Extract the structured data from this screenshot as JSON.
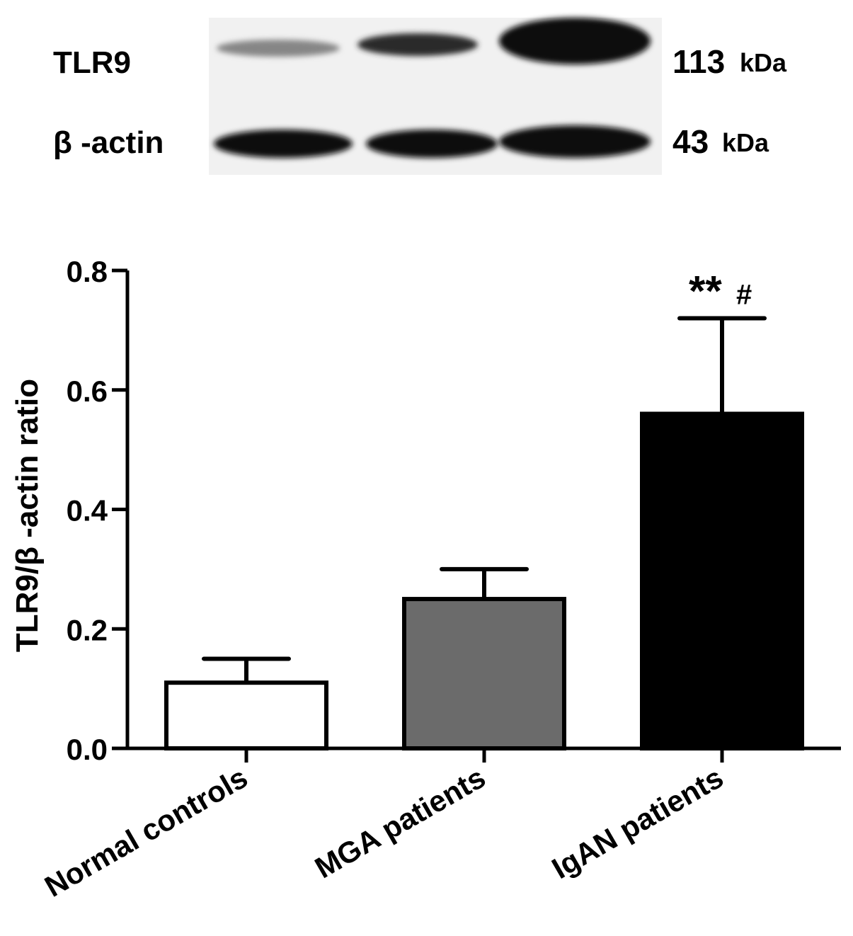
{
  "blot": {
    "rows": [
      {
        "label": "TLR9",
        "size_value": "113",
        "size_unit": "kDa",
        "band_intensity": [
          0.45,
          0.85,
          1.0
        ]
      },
      {
        "label": "β -actin",
        "size_value": "43",
        "size_unit": "kDa",
        "band_intensity": [
          1.0,
          1.0,
          1.0
        ]
      }
    ]
  },
  "chart_data": {
    "type": "bar",
    "title": "",
    "xlabel": "",
    "ylabel": "TLR9/β -actin ratio",
    "ylim": [
      0,
      0.8
    ],
    "yticks": [
      "0.0",
      "0.2",
      "0.4",
      "0.6",
      "0.8"
    ],
    "categories": [
      "Normal controls",
      "MGA patients",
      "IgAN patients"
    ],
    "values": [
      0.11,
      0.25,
      0.56
    ],
    "errors": [
      0.04,
      0.05,
      0.16
    ],
    "bar_colors": [
      "#ffffff",
      "#6b6b6b",
      "#000000"
    ],
    "annotations": [
      {
        "category": "IgAN patients",
        "text": "**",
        "sub": "#"
      }
    ],
    "grid": false,
    "legend": "none"
  }
}
